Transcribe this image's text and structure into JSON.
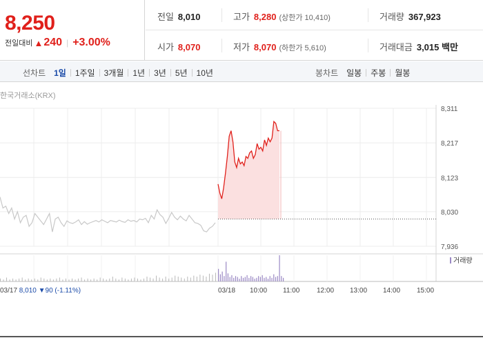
{
  "quote": {
    "price": "8,250",
    "change_label": "전일대비",
    "change_arrow": "▲",
    "change_value": "240",
    "change_rate": "+3.00%"
  },
  "stats": {
    "prev_close": {
      "label": "전일",
      "value": "8,010"
    },
    "high": {
      "label": "고가",
      "value": "8,280",
      "sub": "(상한가 10,410)"
    },
    "volume": {
      "label": "거래량",
      "value": "367,923"
    },
    "open": {
      "label": "시가",
      "value": "8,070"
    },
    "low": {
      "label": "저가",
      "value": "8,070",
      "sub": "(하한가 5,610)"
    },
    "amount": {
      "label": "거래대금",
      "value": "3,015 백만"
    }
  },
  "line_tabs": {
    "title": "선차트",
    "items": [
      "1일",
      "1주일",
      "3개월",
      "1년",
      "3년",
      "5년",
      "10년"
    ],
    "active": "1일"
  },
  "candle_tabs": {
    "title": "봉차트",
    "items": [
      "일봉",
      "주봉",
      "월봉"
    ]
  },
  "exchange_label": "한국거래소(KRX)",
  "colors": {
    "up": "#e0201b",
    "down": "#1a4aa8",
    "prev_line": "#c8c8c8",
    "fill": "#fbe0e0",
    "volume_prev": "#b8b8b8",
    "volume_today": "#9a88c4"
  },
  "chart_data": {
    "type": "line",
    "y_ticks": [
      "8,311",
      "8,217",
      "8,123",
      "8,030",
      "7,936"
    ],
    "ylim": [
      7936,
      8311
    ],
    "x_ticks": [
      "03/18",
      "10:00",
      "11:00",
      "12:00",
      "13:00",
      "14:00",
      "15:00"
    ],
    "prev_close": 8010,
    "prev_day": {
      "label": "03/17",
      "close_text": "8,010",
      "change_arrow": "▼",
      "change_value": "90",
      "change_rate": "(-1.11%)",
      "values": [
        8070,
        8040,
        8045,
        8025,
        8040,
        8010,
        8030,
        8000,
        8015,
        8020,
        7990,
        8000,
        8025,
        8015,
        8005,
        7995,
        8010,
        8025,
        7975,
        8010,
        8015,
        8000,
        7990,
        8005,
        8000,
        7998,
        8002,
        8008,
        7995,
        8003,
        7996,
        8000,
        8003,
        8006,
        8002,
        8008,
        8004,
        8000,
        8006,
        8004,
        8002,
        8007,
        8003,
        8001,
        8008,
        8004,
        8006,
        8002,
        8010,
        8008,
        8012,
        8000,
        8020,
        8010,
        8035,
        8022,
        8015,
        7998,
        8012,
        8028,
        8015,
        8008,
        8018,
        8010,
        8005,
        8020,
        8010,
        8000,
        7998,
        7993,
        7978,
        7975,
        7985,
        7990,
        8000
      ]
    },
    "today": {
      "values": [
        8105,
        8080,
        8065,
        8095,
        8135,
        8180,
        8235,
        8250,
        8220,
        8165,
        8150,
        8175,
        8160,
        8165,
        8155,
        8180,
        8175,
        8190,
        8195,
        8175,
        8185,
        8215,
        8200,
        8205,
        8195,
        8225,
        8210,
        8230,
        8220,
        8230,
        8275,
        8270,
        8250,
        8250
      ]
    },
    "volume_legend": "거래량",
    "volume": {
      "prev_day": [
        3,
        2,
        4,
        2,
        3,
        2,
        3,
        4,
        2,
        3,
        2,
        3,
        2,
        4,
        3,
        2,
        3,
        2,
        3,
        4,
        2,
        3,
        2,
        3,
        2,
        3,
        4,
        2,
        3,
        2,
        3,
        2,
        4,
        3,
        2,
        3,
        5,
        3,
        2,
        4,
        3,
        2,
        3,
        4,
        3,
        2,
        3,
        5,
        4,
        3,
        6,
        4,
        3,
        5,
        3,
        4,
        6,
        5,
        4,
        3,
        5,
        4,
        6,
        5,
        7,
        6,
        5,
        8,
        7,
        9
      ],
      "today": [
        14,
        8,
        11,
        6,
        22,
        9,
        5,
        7,
        4,
        6,
        5,
        3,
        6,
        4,
        5,
        7,
        4,
        6,
        5,
        3,
        4,
        6,
        5,
        7,
        4,
        5,
        3,
        6,
        4,
        8,
        5,
        6,
        30,
        6,
        4
      ]
    }
  }
}
